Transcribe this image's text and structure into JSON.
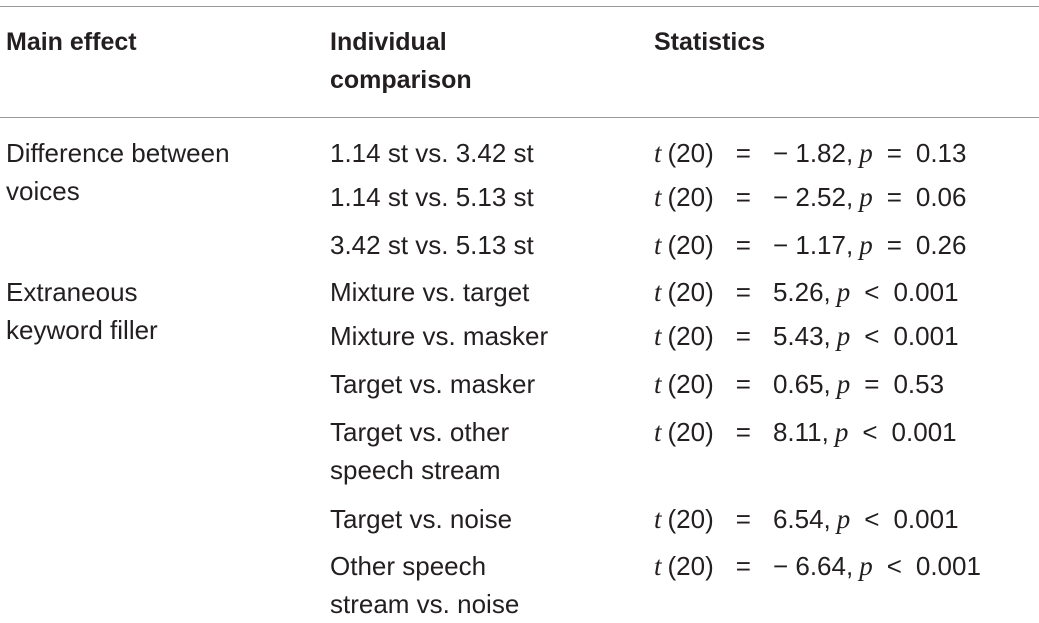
{
  "headers": {
    "main_effect": "Main effect",
    "individual_line1": "Individual",
    "individual_line2": "comparison",
    "statistics": "Statistics"
  },
  "groups": [
    {
      "main_effect_lines": [
        "Difference between",
        "voices"
      ]
    },
    {
      "main_effect_lines": [
        "Extraneous",
        "keyword filler"
      ]
    }
  ],
  "rows": [
    {
      "comparison": [
        "1.14 st vs. 3.42 st"
      ],
      "t": "t",
      "df": "(20)",
      "eq": "=",
      "tval": "− 1.82,",
      "p": "p",
      "rel": "=",
      "pval": "0.13"
    },
    {
      "comparison": [
        "1.14 st vs. 5.13 st"
      ],
      "t": "t",
      "df": "(20)",
      "eq": "=",
      "tval": "− 2.52,",
      "p": "p",
      "rel": "=",
      "pval": "0.06"
    },
    {
      "comparison": [
        "3.42 st vs. 5.13 st"
      ],
      "t": "t",
      "df": "(20)",
      "eq": "=",
      "tval": "− 1.17,",
      "p": "p",
      "rel": "=",
      "pval": "0.26"
    },
    {
      "comparison": [
        "Mixture vs. target"
      ],
      "t": "t",
      "df": "(20)",
      "eq": "=",
      "tval": "5.26,",
      "p": "p",
      "rel": "<",
      "pval": "0.001"
    },
    {
      "comparison": [
        "Mixture vs. masker"
      ],
      "t": "t",
      "df": "(20)",
      "eq": "=",
      "tval": "5.43,",
      "p": "p",
      "rel": "<",
      "pval": "0.001"
    },
    {
      "comparison": [
        "Target vs. masker"
      ],
      "t": "t",
      "df": "(20)",
      "eq": "=",
      "tval": "0.65,",
      "p": "p",
      "rel": "=",
      "pval": "0.53"
    },
    {
      "comparison": [
        "Target vs. other",
        "speech stream"
      ],
      "t": "t",
      "df": "(20)",
      "eq": "=",
      "tval": "8.11,",
      "p": "p",
      "rel": "<",
      "pval": "0.001"
    },
    {
      "comparison": [
        "Target vs. noise"
      ],
      "t": "t",
      "df": "(20)",
      "eq": "=",
      "tval": "6.54,",
      "p": "p",
      "rel": "<",
      "pval": "0.001"
    },
    {
      "comparison": [
        "Other speech",
        "stream vs. noise"
      ],
      "t": "t",
      "df": "(20)",
      "eq": "=",
      "tval": "− 6.64,",
      "p": "p",
      "rel": "<",
      "pval": "0.001"
    }
  ]
}
